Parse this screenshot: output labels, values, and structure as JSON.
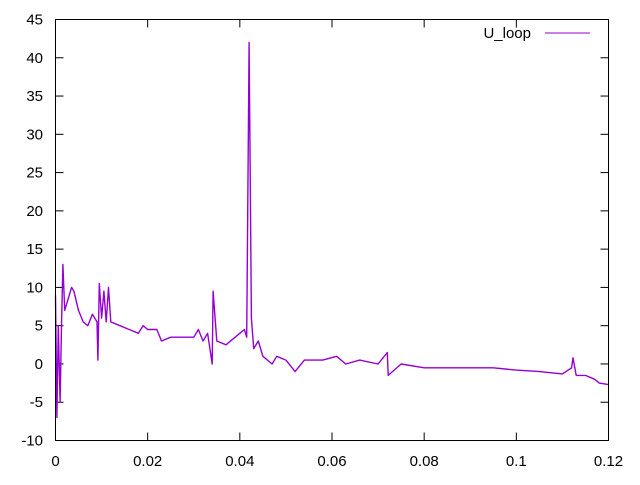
{
  "chart_data": {
    "type": "line",
    "title": "",
    "xlabel": "",
    "ylabel": "",
    "xlim": [
      0,
      0.12
    ],
    "ylim": [
      -10,
      45
    ],
    "xticks": [
      0,
      0.02,
      0.04,
      0.06,
      0.08,
      0.1,
      0.12
    ],
    "xtick_labels": [
      "0",
      "0.02",
      "0.04",
      "0.06",
      "0.08",
      "0.1",
      "0.12"
    ],
    "yticks": [
      -10,
      -5,
      0,
      5,
      10,
      15,
      20,
      25,
      30,
      35,
      40,
      45
    ],
    "ytick_labels": [
      "-10",
      "-5",
      "0",
      "5",
      "10",
      "15",
      "20",
      "25",
      "30",
      "35",
      "40",
      "45"
    ],
    "grid": false,
    "legend": "top-right",
    "series": [
      {
        "name": "U_loop",
        "color": "#9400d3",
        "points": [
          [
            0,
            9
          ],
          [
            0.0003,
            -7
          ],
          [
            0.0006,
            5
          ],
          [
            0.001,
            -5
          ],
          [
            0.0013,
            5
          ],
          [
            0.0016,
            13
          ],
          [
            0.002,
            7
          ],
          [
            0.003,
            9
          ],
          [
            0.0035,
            10
          ],
          [
            0.004,
            9.5
          ],
          [
            0.005,
            7
          ],
          [
            0.006,
            5.5
          ],
          [
            0.007,
            5
          ],
          [
            0.008,
            6.5
          ],
          [
            0.009,
            5.5
          ],
          [
            0.0092,
            0.5
          ],
          [
            0.0095,
            10.5
          ],
          [
            0.01,
            6
          ],
          [
            0.0105,
            9.5
          ],
          [
            0.011,
            5.5
          ],
          [
            0.0115,
            10
          ],
          [
            0.012,
            5.5
          ],
          [
            0.014,
            5
          ],
          [
            0.016,
            4.5
          ],
          [
            0.018,
            4
          ],
          [
            0.019,
            5
          ],
          [
            0.02,
            4.5
          ],
          [
            0.022,
            4.5
          ],
          [
            0.023,
            3
          ],
          [
            0.025,
            3.5
          ],
          [
            0.028,
            3.5
          ],
          [
            0.03,
            3.5
          ],
          [
            0.031,
            4.5
          ],
          [
            0.032,
            3
          ],
          [
            0.033,
            4
          ],
          [
            0.034,
            0
          ],
          [
            0.0342,
            9.5
          ],
          [
            0.035,
            3
          ],
          [
            0.037,
            2.5
          ],
          [
            0.039,
            3.5
          ],
          [
            0.04,
            4
          ],
          [
            0.041,
            4.5
          ],
          [
            0.0415,
            3.5
          ],
          [
            0.042,
            42
          ],
          [
            0.0425,
            6
          ],
          [
            0.043,
            2
          ],
          [
            0.044,
            3
          ],
          [
            0.045,
            1
          ],
          [
            0.047,
            0
          ],
          [
            0.048,
            1
          ],
          [
            0.05,
            0.5
          ],
          [
            0.052,
            -1
          ],
          [
            0.054,
            0.5
          ],
          [
            0.058,
            0.5
          ],
          [
            0.061,
            1
          ],
          [
            0.063,
            0
          ],
          [
            0.066,
            0.5
          ],
          [
            0.07,
            0
          ],
          [
            0.072,
            1.5
          ],
          [
            0.0722,
            -1.5
          ],
          [
            0.075,
            0
          ],
          [
            0.08,
            -0.5
          ],
          [
            0.085,
            -0.5
          ],
          [
            0.09,
            -0.5
          ],
          [
            0.095,
            -0.5
          ],
          [
            0.1,
            -0.8
          ],
          [
            0.105,
            -1
          ],
          [
            0.11,
            -1.3
          ],
          [
            0.112,
            -0.5
          ],
          [
            0.1123,
            0.8
          ],
          [
            0.113,
            -1.5
          ],
          [
            0.115,
            -1.5
          ],
          [
            0.117,
            -2
          ],
          [
            0.118,
            -2.5
          ],
          [
            0.12,
            -2.7
          ]
        ]
      }
    ]
  }
}
